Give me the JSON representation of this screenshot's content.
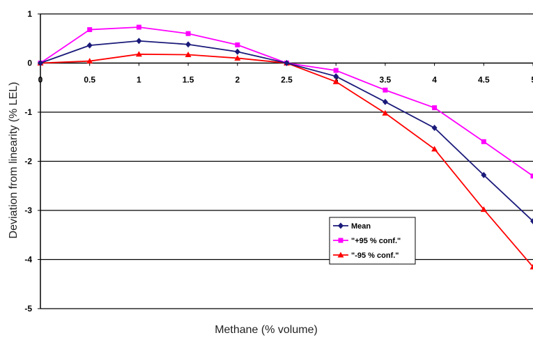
{
  "chart_data": {
    "type": "line",
    "title": "",
    "xlabel": "Methane (% volume)",
    "ylabel": "Deviation from linearity (% LEL)",
    "x": [
      0,
      0.5,
      1,
      1.5,
      2,
      2.5,
      3,
      3.5,
      4,
      4.5,
      5
    ],
    "x_ticks": [
      "0",
      "0.5",
      "1",
      "1.5",
      "2",
      "2.5",
      "3",
      "3.5",
      "4",
      "4.5",
      "5"
    ],
    "y_ticks": [
      "1",
      "0",
      "-1",
      "-2",
      "-3",
      "-4",
      "-5"
    ],
    "xlim": [
      0,
      5
    ],
    "ylim": [
      -5,
      1
    ],
    "grid": "horizontal",
    "legend_position": "bottom-right",
    "series": [
      {
        "name": "Mean",
        "color": "#1a1a7a",
        "marker": "diamond",
        "values": [
          0,
          0.36,
          0.45,
          0.38,
          0.23,
          0,
          -0.27,
          -0.79,
          -1.32,
          -2.28,
          -3.22
        ]
      },
      {
        "name": "\"+95 % conf.\"",
        "color": "#ff00ff",
        "marker": "square",
        "values": [
          0,
          0.68,
          0.73,
          0.6,
          0.37,
          0,
          -0.15,
          -0.55,
          -0.91,
          -1.6,
          -2.3
        ]
      },
      {
        "name": "\"-95 % conf.\"",
        "color": "#ff0000",
        "marker": "triangle",
        "values": [
          0,
          0.04,
          0.18,
          0.17,
          0.1,
          0,
          -0.38,
          -1.02,
          -1.75,
          -2.98,
          -4.15
        ]
      }
    ]
  }
}
